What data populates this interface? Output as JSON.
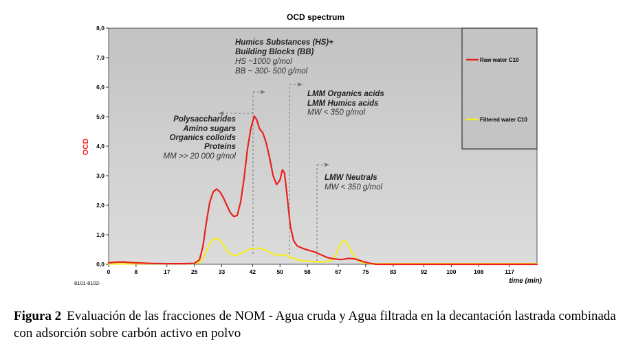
{
  "chart_data": {
    "type": "line",
    "title": "OCD spectrum",
    "xlabel": "time (min)",
    "ylabel": "OCD",
    "xlim": [
      0,
      125
    ],
    "ylim": [
      0,
      8
    ],
    "x_ticks": [
      "0",
      "8",
      "17",
      "25",
      "33",
      "42",
      "50",
      "58",
      "67",
      "75",
      "83",
      "92",
      "100",
      "108",
      "117"
    ],
    "y_ticks": [
      "0,0",
      "1,0",
      "2,0",
      "3,0",
      "4,0",
      "5,0",
      "6,0",
      "7,0",
      "8,0"
    ],
    "footnote": "8101-8102-",
    "legend_position": "top-right",
    "series": [
      {
        "name": "Raw water C10",
        "color": "#e8211c",
        "points": [
          [
            0,
            0.05
          ],
          [
            2,
            0.07
          ],
          [
            4,
            0.08
          ],
          [
            6,
            0.06
          ],
          [
            8,
            0.05
          ],
          [
            12,
            0.03
          ],
          [
            17,
            0.02
          ],
          [
            22,
            0.02
          ],
          [
            25,
            0.03
          ],
          [
            26.5,
            0.15
          ],
          [
            27.5,
            0.6
          ],
          [
            28.5,
            1.4
          ],
          [
            29.5,
            2.1
          ],
          [
            30.5,
            2.45
          ],
          [
            31.5,
            2.55
          ],
          [
            32.5,
            2.45
          ],
          [
            33.5,
            2.25
          ],
          [
            34.5,
            2.0
          ],
          [
            35.5,
            1.75
          ],
          [
            36.5,
            1.62
          ],
          [
            37.5,
            1.65
          ],
          [
            38.5,
            2.1
          ],
          [
            39.5,
            2.9
          ],
          [
            40.5,
            3.9
          ],
          [
            41.5,
            4.6
          ],
          [
            42.5,
            5.02
          ],
          [
            43.2,
            4.9
          ],
          [
            44,
            4.6
          ],
          [
            45,
            4.45
          ],
          [
            46,
            4.1
          ],
          [
            47,
            3.6
          ],
          [
            48,
            3.0
          ],
          [
            49,
            2.7
          ],
          [
            50,
            2.85
          ],
          [
            50.7,
            3.2
          ],
          [
            51.3,
            3.1
          ],
          [
            52,
            2.4
          ],
          [
            53,
            1.3
          ],
          [
            54,
            0.8
          ],
          [
            55,
            0.62
          ],
          [
            57,
            0.52
          ],
          [
            60,
            0.42
          ],
          [
            62,
            0.32
          ],
          [
            64,
            0.22
          ],
          [
            66,
            0.18
          ],
          [
            68,
            0.16
          ],
          [
            70,
            0.2
          ],
          [
            72,
            0.18
          ],
          [
            74,
            0.1
          ],
          [
            76,
            0.04
          ],
          [
            78,
            0.0
          ],
          [
            125,
            0.0
          ]
        ]
      },
      {
        "name": "Filtered water C10",
        "color": "#f6ec1e",
        "points": [
          [
            0,
            0.01
          ],
          [
            10,
            0.02
          ],
          [
            20,
            0.02
          ],
          [
            25,
            0.02
          ],
          [
            26.5,
            0.06
          ],
          [
            27.5,
            0.2
          ],
          [
            28.5,
            0.45
          ],
          [
            29.5,
            0.7
          ],
          [
            30.5,
            0.85
          ],
          [
            31.5,
            0.88
          ],
          [
            32.5,
            0.8
          ],
          [
            33.5,
            0.65
          ],
          [
            34.5,
            0.48
          ],
          [
            35.5,
            0.35
          ],
          [
            36.5,
            0.3
          ],
          [
            37.5,
            0.3
          ],
          [
            38.5,
            0.36
          ],
          [
            39.5,
            0.42
          ],
          [
            40.5,
            0.48
          ],
          [
            41.5,
            0.52
          ],
          [
            42.5,
            0.53
          ],
          [
            44,
            0.55
          ],
          [
            45.5,
            0.5
          ],
          [
            47,
            0.4
          ],
          [
            48.5,
            0.32
          ],
          [
            50,
            0.3
          ],
          [
            51.5,
            0.32
          ],
          [
            53,
            0.25
          ],
          [
            55,
            0.15
          ],
          [
            58,
            0.1
          ],
          [
            62,
            0.08
          ],
          [
            65,
            0.12
          ],
          [
            66.5,
            0.35
          ],
          [
            67.5,
            0.65
          ],
          [
            68.5,
            0.8
          ],
          [
            69.5,
            0.75
          ],
          [
            70.5,
            0.5
          ],
          [
            71.5,
            0.3
          ],
          [
            72.5,
            0.15
          ],
          [
            74,
            0.06
          ],
          [
            76,
            0.02
          ],
          [
            85,
            0.02
          ],
          [
            100,
            0.02
          ],
          [
            110,
            0.02
          ],
          [
            125,
            0.02
          ]
        ]
      }
    ],
    "annotations": [
      {
        "lines": [
          {
            "text": "Humics Substances  (HS)+",
            "bold": true
          },
          {
            "text": "Building Blocks (BB)",
            "bold": true
          },
          {
            "text": "HS ~1000 g/mol",
            "bold": false
          },
          {
            "text": "BB ~ 300- 500 g/mol",
            "bold": false
          }
        ]
      },
      {
        "lines": [
          {
            "text": "Polysaccharides",
            "bold": true
          },
          {
            "text": "Amino sugars",
            "bold": true
          },
          {
            "text": "Organics colloids",
            "bold": true
          },
          {
            "text": "Proteins",
            "bold": true
          },
          {
            "text": "MM >> 20 000 g/mol",
            "bold": false
          }
        ]
      },
      {
        "lines": [
          {
            "text": "LMM Organics acids",
            "bold": true
          },
          {
            "text": "LMM Humics acids",
            "bold": true
          },
          {
            "text": "MW < 350 g/mol",
            "bold": false
          }
        ]
      },
      {
        "lines": [
          {
            "text": "LMW Neutrals",
            "bold": true
          },
          {
            "text": "MW < 350 g/mol",
            "bold": false
          }
        ]
      }
    ]
  },
  "caption": {
    "label": "Figura 2",
    "text": "Evaluación de las fracciones de NOM - Agua cruda y Agua filtrada en la decantación lastrada combinada con adsorción sobre carbón activo en polvo"
  }
}
